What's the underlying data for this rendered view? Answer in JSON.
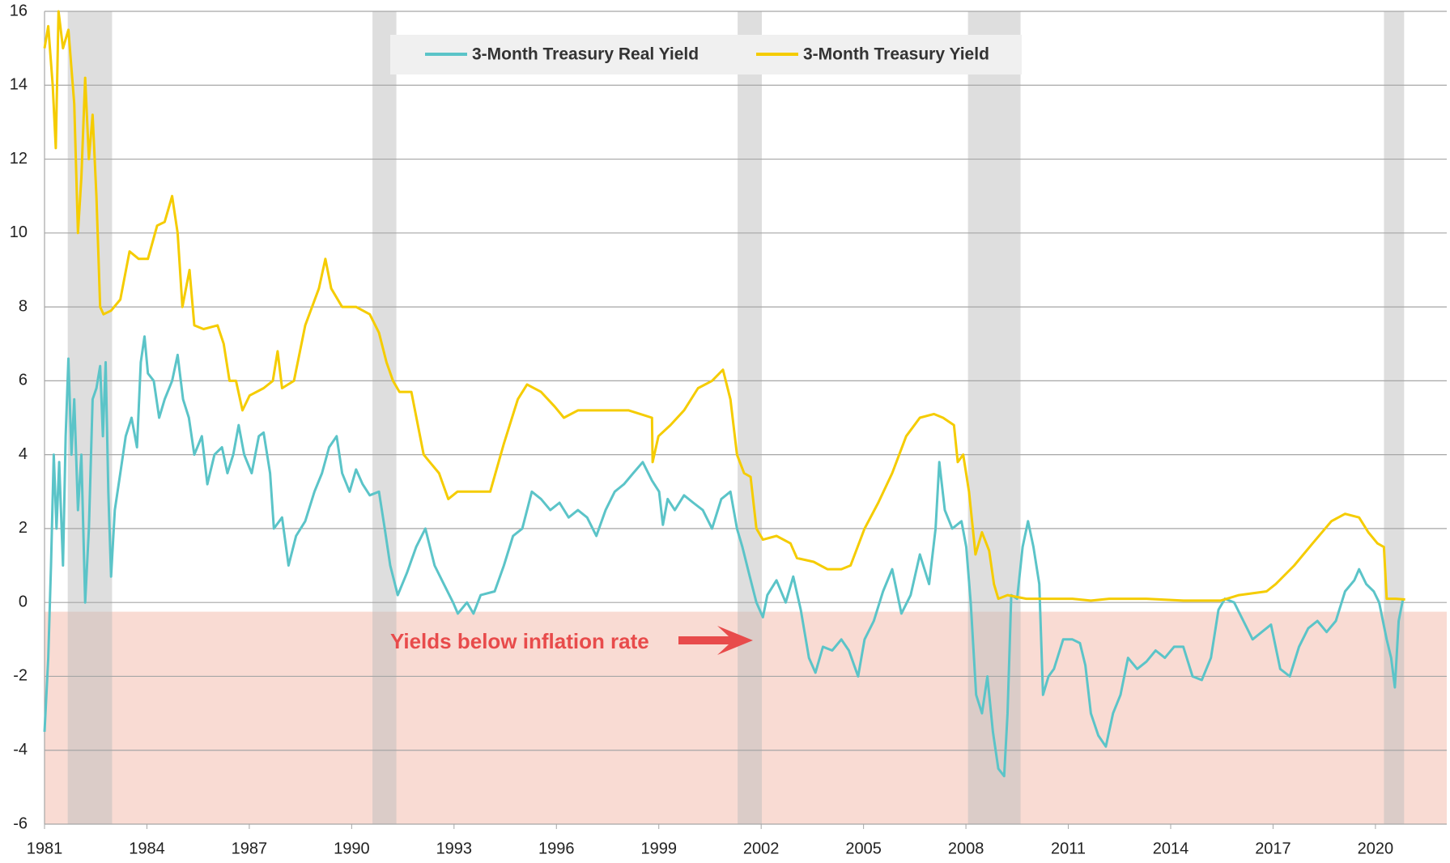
{
  "chart_data": {
    "type": "line",
    "annotation": "Yields below inflation rate",
    "xlim": [
      1981,
      2022.09
    ],
    "xticks": [
      1981,
      1984,
      1987,
      1990,
      1993,
      1996,
      1999,
      2002,
      2005,
      2008,
      2011,
      2014,
      2017,
      2020
    ],
    "ylim": [
      -6,
      16
    ],
    "yticks": [
      -6,
      -4,
      -2,
      0,
      2,
      4,
      6,
      8,
      10,
      12,
      14,
      16
    ],
    "grid": true,
    "legend": "top",
    "shaded_band": [
      -6,
      -0.25
    ],
    "recessions": [
      [
        1981.68,
        1982.98
      ],
      [
        1990.61,
        1991.31
      ],
      [
        2001.31,
        2002.02
      ],
      [
        2008.06,
        2009.6
      ],
      [
        2020.25,
        2020.84
      ]
    ],
    "series": [
      {
        "name": "3-Month Treasury Real Yield",
        "color": "#5bc4c8",
        "x": [
          1981.0,
          1981.11,
          1981.19,
          1981.27,
          1981.35,
          1981.43,
          1981.54,
          1981.62,
          1981.7,
          1981.79,
          1981.87,
          1981.98,
          1982.08,
          1982.19,
          1982.3,
          1982.41,
          1982.52,
          1982.63,
          1982.71,
          1982.79,
          1982.87,
          1982.95,
          1983.06,
          1983.22,
          1983.38,
          1983.55,
          1983.71,
          1983.82,
          1983.93,
          1984.03,
          1984.2,
          1984.36,
          1984.52,
          1984.74,
          1984.9,
          1985.06,
          1985.23,
          1985.39,
          1985.61,
          1985.77,
          1985.98,
          1986.2,
          1986.36,
          1986.53,
          1986.69,
          1986.85,
          1987.07,
          1987.28,
          1987.42,
          1987.61,
          1987.72,
          1987.96,
          1988.15,
          1988.37,
          1988.64,
          1988.91,
          1989.13,
          1989.34,
          1989.56,
          1989.72,
          1989.94,
          1990.13,
          1990.32,
          1990.53,
          1990.8,
          1990.97,
          1991.13,
          1991.35,
          1991.62,
          1991.89,
          1992.16,
          1992.43,
          1992.7,
          1992.97,
          1993.11,
          1993.38,
          1993.57,
          1993.78,
          1994.19,
          1994.46,
          1994.73,
          1995.0,
          1995.28,
          1995.55,
          1995.82,
          1996.09,
          1996.36,
          1996.63,
          1996.9,
          1997.17,
          1997.44,
          1997.71,
          1997.98,
          1998.25,
          1998.53,
          1998.8,
          1999.01,
          1999.12,
          1999.26,
          1999.47,
          1999.74,
          2000.01,
          2000.29,
          2000.56,
          2000.83,
          2001.1,
          2001.29,
          2001.45,
          2001.64,
          2001.86,
          2002.05,
          2002.18,
          2002.45,
          2002.72,
          2002.94,
          2003.16,
          2003.4,
          2003.59,
          2003.81,
          2004.08,
          2004.35,
          2004.57,
          2004.84,
          2005.03,
          2005.3,
          2005.57,
          2005.84,
          2006.11,
          2006.38,
          2006.65,
          2006.92,
          2007.11,
          2007.22,
          2007.38,
          2007.6,
          2007.87,
          2008.01,
          2008.14,
          2008.3,
          2008.47,
          2008.63,
          2008.79,
          2008.95,
          2009.12,
          2009.22,
          2009.33,
          2009.5,
          2009.66,
          2009.82,
          2009.98,
          2010.15,
          2010.26,
          2010.42,
          2010.58,
          2010.85,
          2011.12,
          2011.34,
          2011.5,
          2011.66,
          2011.88,
          2012.1,
          2012.31,
          2012.53,
          2012.75,
          2013.02,
          2013.29,
          2013.56,
          2013.83,
          2014.1,
          2014.37,
          2014.64,
          2014.91,
          2015.18,
          2015.4,
          2015.59,
          2015.86,
          2016.13,
          2016.4,
          2016.67,
          2016.94,
          2017.21,
          2017.49,
          2017.76,
          2018.03,
          2018.3,
          2018.57,
          2018.84,
          2019.11,
          2019.38,
          2019.52,
          2019.73,
          2019.95,
          2020.11,
          2020.33,
          2020.46,
          2020.57,
          2020.68,
          2020.81
        ],
        "values": [
          -3.5,
          -1.5,
          1.0,
          4.0,
          2.0,
          3.8,
          1.0,
          4.5,
          6.6,
          4.0,
          5.5,
          2.5,
          4.0,
          0.0,
          2.0,
          5.5,
          5.8,
          6.4,
          4.5,
          6.5,
          3.0,
          0.7,
          2.5,
          3.5,
          4.5,
          5.0,
          4.2,
          6.5,
          7.2,
          6.2,
          6.0,
          5.0,
          5.5,
          6.0,
          6.7,
          5.5,
          5.0,
          4.0,
          4.5,
          3.2,
          4.0,
          4.2,
          3.5,
          4.0,
          4.8,
          4.0,
          3.5,
          4.5,
          4.6,
          3.5,
          2.0,
          2.3,
          1.0,
          1.8,
          2.2,
          3.0,
          3.5,
          4.2,
          4.5,
          3.5,
          3.0,
          3.6,
          3.2,
          2.9,
          3.0,
          2.0,
          1.0,
          0.2,
          0.8,
          1.5,
          2.0,
          1.0,
          0.5,
          0.0,
          -0.3,
          0.0,
          -0.3,
          0.2,
          0.3,
          1.0,
          1.8,
          2.0,
          3.0,
          2.8,
          2.5,
          2.7,
          2.3,
          2.5,
          2.3,
          1.8,
          2.5,
          3.0,
          3.2,
          3.5,
          3.8,
          3.3,
          3.0,
          2.1,
          2.8,
          2.5,
          2.9,
          2.7,
          2.5,
          2.0,
          2.8,
          3.0,
          2.0,
          1.5,
          0.8,
          0.0,
          -0.4,
          0.2,
          0.6,
          0.0,
          0.7,
          -0.2,
          -1.5,
          -1.9,
          -1.2,
          -1.3,
          -1.0,
          -1.3,
          -2.0,
          -1.0,
          -0.5,
          0.3,
          0.9,
          -0.3,
          0.2,
          1.3,
          0.5,
          2.0,
          3.8,
          2.5,
          2.0,
          2.2,
          1.5,
          0.0,
          -2.5,
          -3.0,
          -2.0,
          -3.5,
          -4.5,
          -4.7,
          -3.0,
          0.2,
          0.1,
          1.5,
          2.2,
          1.5,
          0.5,
          -2.5,
          -2.0,
          -1.8,
          -1.0,
          -1.0,
          -1.1,
          -1.7,
          -3.0,
          -3.6,
          -3.9,
          -3.0,
          -2.5,
          -1.5,
          -1.8,
          -1.6,
          -1.3,
          -1.5,
          -1.2,
          -1.2,
          -2.0,
          -2.1,
          -1.5,
          -0.2,
          0.1,
          0.0,
          -0.5,
          -1.0,
          -0.8,
          -0.6,
          -1.8,
          -2.0,
          -1.2,
          -0.7,
          -0.5,
          -0.8,
          -0.5,
          0.3,
          0.6,
          0.9,
          0.5,
          0.3,
          0.0,
          -1.0,
          -1.5,
          -2.3,
          -0.5,
          0.1
        ]
      },
      {
        "name": "3-Month Treasury Yield",
        "color": "#f5cc00",
        "x": [
          1981.0,
          1981.11,
          1981.24,
          1981.33,
          1981.41,
          1981.54,
          1981.7,
          1981.87,
          1981.98,
          1982.08,
          1982.19,
          1982.3,
          1982.41,
          1982.52,
          1982.63,
          1982.73,
          1982.95,
          1983.22,
          1983.49,
          1983.76,
          1984.03,
          1984.3,
          1984.52,
          1984.74,
          1984.9,
          1985.04,
          1985.25,
          1985.39,
          1985.66,
          1986.07,
          1986.25,
          1986.42,
          1986.61,
          1986.8,
          1987.01,
          1987.42,
          1987.69,
          1987.83,
          1987.96,
          1988.31,
          1988.64,
          1989.04,
          1989.23,
          1989.4,
          1989.72,
          1990.13,
          1990.53,
          1990.8,
          1991.02,
          1991.21,
          1991.4,
          1991.75,
          1992.11,
          1992.29,
          1992.56,
          1992.83,
          1993.1,
          1993.51,
          1994.06,
          1994.46,
          1994.87,
          1995.14,
          1995.55,
          1995.95,
          1996.22,
          1996.63,
          1997.04,
          1997.58,
          1998.12,
          1998.8,
          1998.82,
          1998.99,
          1999.34,
          1999.74,
          2000.15,
          2000.56,
          2000.88,
          2001.1,
          2001.29,
          2001.5,
          2001.69,
          2001.86,
          2002.05,
          2002.45,
          2002.86,
          2003.05,
          2003.54,
          2003.94,
          2004.35,
          2004.62,
          2005.03,
          2005.43,
          2005.84,
          2006.25,
          2006.65,
          2007.06,
          2007.33,
          2007.65,
          2007.76,
          2007.92,
          2008.09,
          2008.28,
          2008.47,
          2008.68,
          2008.82,
          2008.95,
          2009.22,
          2009.77,
          2010.31,
          2011.12,
          2011.66,
          2012.2,
          2013.29,
          2014.37,
          2015.46,
          2016.0,
          2016.81,
          2017.08,
          2017.62,
          2018.16,
          2018.71,
          2019.11,
          2019.52,
          2019.79,
          2020.06,
          2020.25,
          2020.33,
          2020.6,
          2020.87
        ],
        "values": [
          15.0,
          15.6,
          14.0,
          12.3,
          16.0,
          15.0,
          15.5,
          13.5,
          10.0,
          11.5,
          14.2,
          12.0,
          13.2,
          11.0,
          8.0,
          7.8,
          7.9,
          8.2,
          9.5,
          9.3,
          9.3,
          10.2,
          10.3,
          11.0,
          10.0,
          8.0,
          9.0,
          7.5,
          7.4,
          7.5,
          7.0,
          6.0,
          6.0,
          5.2,
          5.6,
          5.8,
          6.0,
          6.8,
          5.8,
          6.0,
          7.5,
          8.5,
          9.3,
          8.5,
          8.0,
          8.0,
          7.8,
          7.3,
          6.5,
          6.0,
          5.7,
          5.7,
          4.0,
          3.8,
          3.5,
          2.8,
          3.0,
          3.0,
          3.0,
          4.3,
          5.5,
          5.9,
          5.7,
          5.3,
          5.0,
          5.2,
          5.2,
          5.2,
          5.2,
          5.0,
          3.8,
          4.5,
          4.8,
          5.2,
          5.8,
          6.0,
          6.3,
          5.5,
          4.0,
          3.5,
          3.4,
          2.0,
          1.7,
          1.8,
          1.6,
          1.2,
          1.1,
          0.9,
          0.9,
          1.0,
          2.0,
          2.7,
          3.5,
          4.5,
          5.0,
          5.1,
          5.0,
          4.8,
          3.8,
          4.0,
          3.0,
          1.3,
          1.9,
          1.4,
          0.5,
          0.1,
          0.2,
          0.1,
          0.1,
          0.1,
          0.05,
          0.1,
          0.1,
          0.05,
          0.05,
          0.2,
          0.3,
          0.5,
          1.0,
          1.6,
          2.2,
          2.4,
          2.3,
          1.9,
          1.6,
          1.5,
          0.1,
          0.1,
          0.08
        ]
      }
    ]
  }
}
